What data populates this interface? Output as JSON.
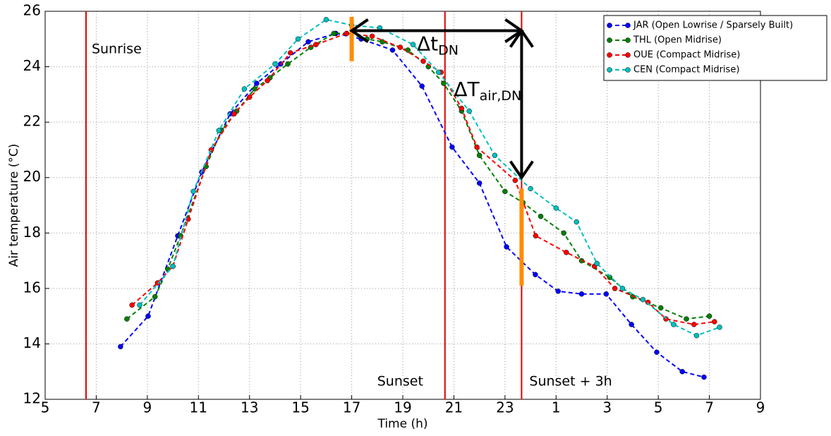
{
  "chart_data": {
    "type": "line",
    "xlabel": "Time (h)",
    "ylabel": "Air temperature (°C)",
    "xlim": [
      5,
      33
    ],
    "ylim": [
      12,
      26
    ],
    "xticks": [
      5,
      7,
      9,
      11,
      13,
      15,
      17,
      19,
      21,
      23,
      {
        "value": 25,
        "label": "1"
      },
      {
        "value": 27,
        "label": "3"
      },
      {
        "value": 29,
        "label": "5"
      },
      {
        "value": 31,
        "label": "7"
      },
      {
        "value": 33,
        "label": "9"
      }
    ],
    "yticks": [
      12,
      14,
      16,
      18,
      20,
      22,
      24,
      26
    ],
    "grid": true,
    "legend": "upper right",
    "series": [
      {
        "name": "JAR (Open Lowrise / Sparsely Built)",
        "color": "#0000ff",
        "x": [
          7.95,
          9.03,
          10.19,
          11.13,
          12.24,
          13.28,
          14.22,
          15.3,
          16.38,
          17.37,
          18.6,
          19.75,
          20.93,
          22.0,
          23.06,
          24.19,
          25.08,
          26.0,
          26.96,
          27.95,
          28.94,
          29.94,
          30.79
        ],
        "values": [
          13.9,
          15.0,
          17.9,
          20.2,
          22.3,
          23.4,
          24.1,
          24.9,
          25.2,
          25.0,
          24.6,
          23.3,
          21.1,
          19.8,
          17.5,
          16.5,
          15.9,
          15.8,
          15.8,
          14.7,
          13.7,
          13.0,
          12.8
        ]
      },
      {
        "name": "THL (Open Midrise)",
        "color": "#008000",
        "x": [
          8.2,
          9.3,
          9.8,
          10.3,
          11.3,
          11.9,
          12.5,
          13.2,
          13.8,
          14.5,
          15.4,
          16.3,
          16.8,
          17.6,
          18.2,
          19.2,
          20.0,
          20.6,
          21.3,
          22.0,
          23.0,
          23.7,
          24.4,
          25.3,
          26.0,
          27.1,
          28.0,
          29.1,
          30.1,
          31.0
        ],
        "values": [
          14.9,
          15.7,
          16.7,
          17.9,
          20.4,
          21.7,
          22.4,
          23.2,
          23.6,
          24.1,
          24.7,
          25.2,
          25.2,
          25.0,
          24.9,
          24.6,
          24.0,
          23.4,
          22.4,
          20.8,
          19.5,
          19.1,
          18.6,
          18.0,
          17.0,
          16.4,
          15.7,
          15.3,
          14.9,
          15.0
        ]
      },
      {
        "name": "OUE (Compact Midrise)",
        "color": "#ff0000",
        "x": [
          8.4,
          9.4,
          10.0,
          10.6,
          11.5,
          12.4,
          13.0,
          13.7,
          14.6,
          15.6,
          16.8,
          17.8,
          18.9,
          19.8,
          20.5,
          21.3,
          21.9,
          23.4,
          24.2,
          25.4,
          26.5,
          27.3,
          28.6,
          29.3,
          30.4,
          31.2
        ],
        "values": [
          15.4,
          16.2,
          16.8,
          18.5,
          21.0,
          22.3,
          22.9,
          23.5,
          24.5,
          24.8,
          25.2,
          25.1,
          24.7,
          24.2,
          23.8,
          22.5,
          21.1,
          19.9,
          17.9,
          17.3,
          16.8,
          16.0,
          15.5,
          14.9,
          14.7,
          14.8
        ]
      },
      {
        "name": "CEN (Compact Midrise)",
        "color": "#00bfbf",
        "x": [
          8.7,
          10.0,
          10.8,
          11.8,
          12.8,
          14.0,
          14.9,
          16.0,
          17.0,
          18.1,
          19.4,
          20.4,
          21.6,
          22.6,
          24.0,
          25.0,
          25.8,
          26.6,
          27.6,
          28.4,
          29.6,
          30.5,
          31.4
        ],
        "values": [
          15.4,
          16.8,
          19.5,
          21.7,
          23.2,
          24.1,
          25.0,
          25.7,
          25.5,
          25.4,
          24.8,
          23.8,
          22.4,
          20.8,
          19.6,
          18.9,
          18.4,
          16.9,
          16.0,
          15.6,
          14.7,
          14.3,
          14.6
        ]
      }
    ],
    "vlines": [
      {
        "x": 6.6,
        "label": "Sunrise"
      },
      {
        "x": 20.65,
        "label": "Sunset"
      },
      {
        "x": 23.65,
        "label": "Sunset + 3h"
      }
    ],
    "markers": [
      {
        "x": 17,
        "y": [
          24.2,
          25.8
        ]
      },
      {
        "x": 23.65,
        "y": [
          16.1,
          19.6
        ]
      }
    ],
    "arrows": [
      {
        "x": [
          17,
          23.65
        ],
        "y": [
          25.3,
          25.3
        ],
        "label": "Δt",
        "label_sub": "DN"
      },
      {
        "x": [
          23.65,
          23.65
        ],
        "y": [
          25.3,
          20.0
        ],
        "label": "ΔT",
        "label_sub": "air,DN"
      }
    ]
  }
}
